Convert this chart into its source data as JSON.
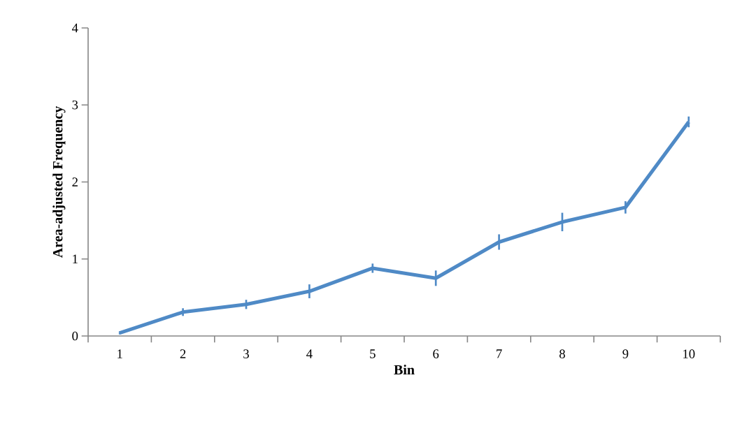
{
  "chart_data": {
    "type": "line",
    "xlabel": "Bin",
    "ylabel": "Area-adjusted Frequency",
    "categories": [
      "1",
      "2",
      "3",
      "4",
      "5",
      "6",
      "7",
      "8",
      "9",
      "10"
    ],
    "values": [
      0.04,
      0.31,
      0.41,
      0.58,
      0.88,
      0.75,
      1.22,
      1.48,
      1.67,
      2.78
    ],
    "errors": [
      0.02,
      0.05,
      0.06,
      0.09,
      0.06,
      0.1,
      0.1,
      0.12,
      0.08,
      0.07
    ],
    "color": "#4f8ac6",
    "ylim": [
      0,
      4
    ],
    "yticks": [
      0,
      1,
      2,
      3,
      4
    ]
  }
}
